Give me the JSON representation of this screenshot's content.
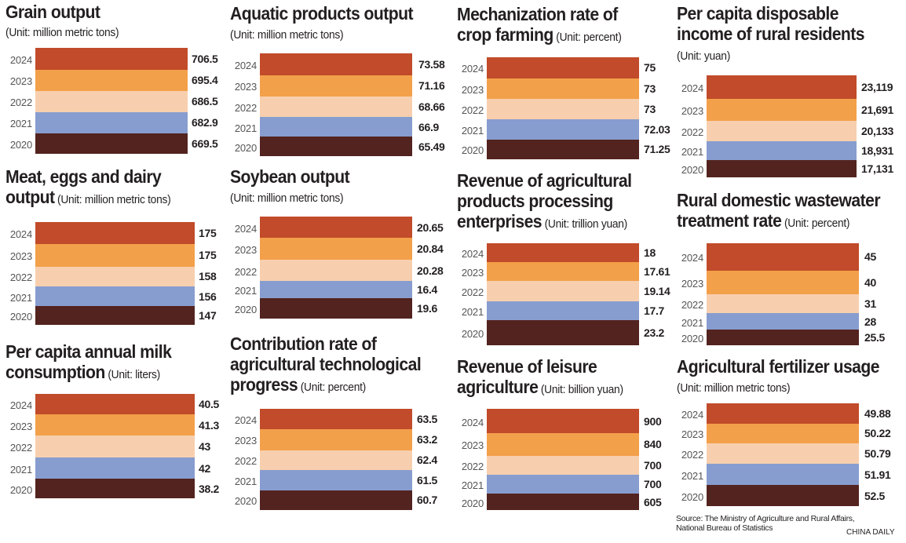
{
  "colors": {
    "2024": "#C14B2A",
    "2023": "#F3A04A",
    "2022": "#F7CFAE",
    "2021": "#879DCF",
    "2020": "#53231F"
  },
  "source": "Source: The Ministry of Agriculture and Rural Affairs,\nNational Bureau of Statistics",
  "brand": "CHINA DAILY",
  "chart_data": [
    {
      "type": "bar",
      "title": "Grain output",
      "unit": "(Unit: million metric tons)",
      "categories": [
        "2024",
        "2023",
        "2022",
        "2021",
        "2020"
      ],
      "values": [
        706.5,
        695.4,
        686.5,
        682.9,
        669.5
      ],
      "labels": [
        "706.5",
        "695.4",
        "686.5",
        "682.9",
        "669.5"
      ]
    },
    {
      "type": "bar",
      "title": "Aquatic products output",
      "unit": "(Unit: million metric tons)",
      "categories": [
        "2024",
        "2023",
        "2022",
        "2021",
        "2020"
      ],
      "values": [
        73.58,
        71.16,
        68.66,
        66.9,
        65.49
      ],
      "labels": [
        "73.58",
        "71.16",
        "68.66",
        "66.9",
        "65.49"
      ]
    },
    {
      "type": "bar",
      "title": "Mechanization rate of crop farming",
      "title_lines": [
        "Mechanization rate of",
        "crop farming"
      ],
      "unit": "(Unit: percent)",
      "categories": [
        "2024",
        "2023",
        "2022",
        "2021",
        "2020"
      ],
      "values": [
        75,
        73,
        73,
        72.03,
        71.25
      ],
      "labels": [
        "75",
        "73",
        "73",
        "72.03",
        "71.25"
      ]
    },
    {
      "type": "bar",
      "title": "Per capita disposable income of rural residents",
      "title_lines": [
        "Per capita disposable",
        "income of rural residents"
      ],
      "unit": "(Unit: yuan)",
      "categories": [
        "2024",
        "2023",
        "2022",
        "2021",
        "2020"
      ],
      "values": [
        23119,
        21691,
        20133,
        18931,
        17131
      ],
      "labels": [
        "23,119",
        "21,691",
        "20,133",
        "18,931",
        "17,131"
      ]
    },
    {
      "type": "bar",
      "title": "Meat, eggs and dairy output",
      "title_lines": [
        "Meat, eggs and dairy",
        "output"
      ],
      "unit": "(Unit: million metric tons)",
      "categories": [
        "2024",
        "2023",
        "2022",
        "2021",
        "2020"
      ],
      "values": [
        175,
        175,
        158,
        156,
        147
      ],
      "labels": [
        "175",
        "175",
        "158",
        "156",
        "147"
      ]
    },
    {
      "type": "bar",
      "title": "Soybean output",
      "unit": "(Unit: million metric tons)",
      "categories": [
        "2024",
        "2023",
        "2022",
        "2021",
        "2020"
      ],
      "values": [
        20.65,
        20.84,
        20.28,
        16.4,
        19.6
      ],
      "labels": [
        "20.65",
        "20.84",
        "20.28",
        "16.4",
        "19.6"
      ]
    },
    {
      "type": "bar",
      "title": "Revenue of agricultural products processing enterprises",
      "title_lines": [
        "Revenue of agricultural",
        "products processing",
        "enterprises"
      ],
      "unit": "(Unit: trillion yuan)",
      "categories": [
        "2024",
        "2023",
        "2022",
        "2021",
        "2020"
      ],
      "values": [
        18,
        17.61,
        19.14,
        17.7,
        23.2
      ],
      "labels": [
        "18",
        "17.61",
        "19.14",
        "17.7",
        "23.2"
      ]
    },
    {
      "type": "bar",
      "title": "Rural domestic wastewater treatment rate",
      "title_lines": [
        "Rural domestic wastewater",
        "treatment rate"
      ],
      "unit": "(Unit: percent)",
      "categories": [
        "2024",
        "2023",
        "2022",
        "2021",
        "2020"
      ],
      "values": [
        45,
        40,
        31,
        28,
        25.5
      ],
      "labels": [
        "45",
        "40",
        "31",
        "28",
        "25.5"
      ]
    },
    {
      "type": "bar",
      "title": "Per capita annual milk consumption",
      "title_lines": [
        "Per capita annual milk",
        "consumption"
      ],
      "unit": "(Unit: liters)",
      "categories": [
        "2024",
        "2023",
        "2022",
        "2021",
        "2020"
      ],
      "values": [
        40.5,
        41.3,
        43,
        42,
        38.2
      ],
      "labels": [
        "40.5",
        "41.3",
        "43",
        "42",
        "38.2"
      ]
    },
    {
      "type": "bar",
      "title": "Contribution rate of agricultural technological progress",
      "title_lines": [
        "Contribution rate of",
        "agricultural technological",
        "progress"
      ],
      "unit": "(Unit: percent)",
      "categories": [
        "2024",
        "2023",
        "2022",
        "2021",
        "2020"
      ],
      "values": [
        63.5,
        63.2,
        62.4,
        61.5,
        60.7
      ],
      "labels": [
        "63.5",
        "63.2",
        "62.4",
        "61.5",
        "60.7"
      ]
    },
    {
      "type": "bar",
      "title": "Revenue of leisure agriculture",
      "title_lines": [
        "Revenue of leisure",
        "agriculture"
      ],
      "unit": "(Unit: billion yuan)",
      "categories": [
        "2024",
        "2023",
        "2022",
        "2021",
        "2020"
      ],
      "values": [
        900,
        840,
        700,
        700,
        605
      ],
      "labels": [
        "900",
        "840",
        "700",
        "700",
        "605"
      ]
    },
    {
      "type": "bar",
      "title": "Agricultural fertilizer usage",
      "unit": "(Unit: million metric tons)",
      "categories": [
        "2024",
        "2023",
        "2022",
        "2021",
        "2020"
      ],
      "values": [
        49.88,
        50.22,
        50.79,
        51.91,
        52.5
      ],
      "labels": [
        "49.88",
        "50.22",
        "50.79",
        "51.91",
        "52.5"
      ]
    }
  ]
}
